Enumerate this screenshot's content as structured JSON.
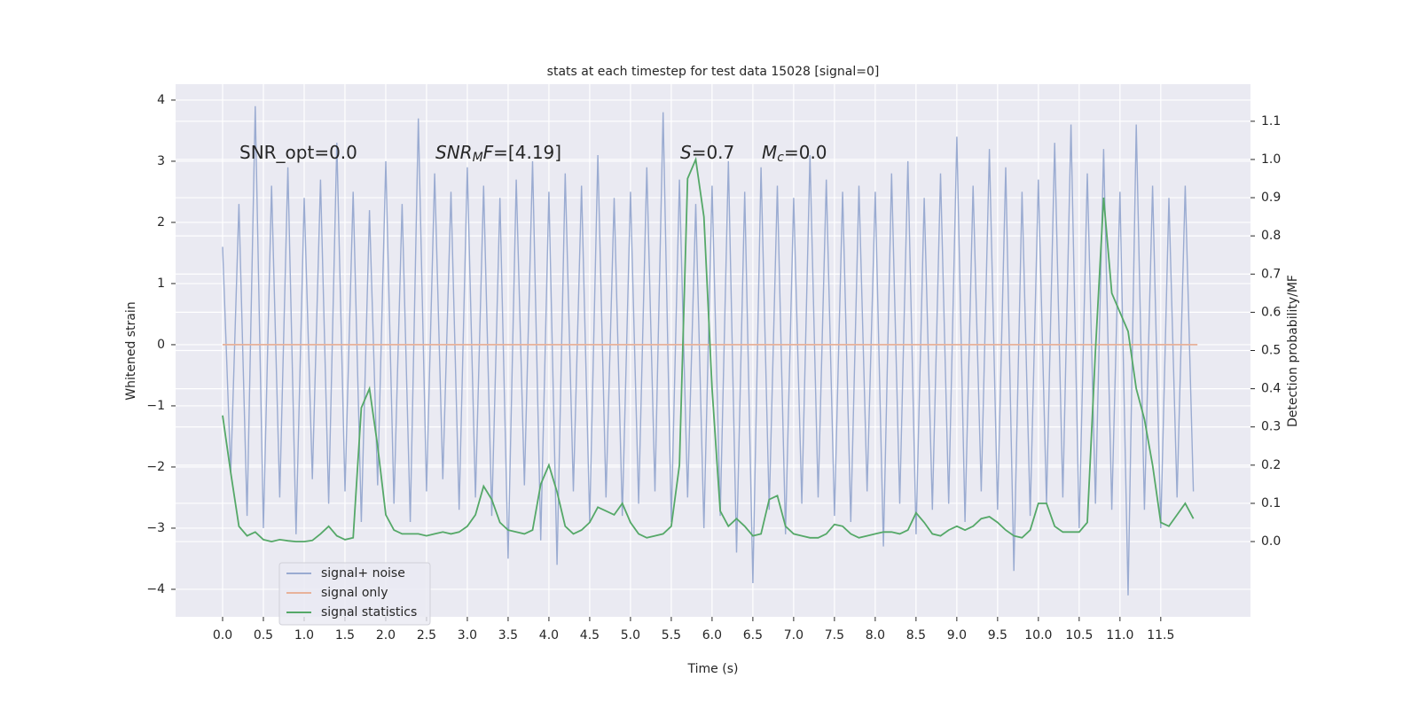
{
  "chart_data": {
    "type": "line",
    "title": "stats at each timestep for test data 15028 [signal=0]",
    "xlabel": "Time (s)",
    "ylabel": "Whitened strain",
    "y2label": "Detection probability/MF",
    "grid": true,
    "legend": "lower left",
    "annotations": [
      [
        {
          "text": "SNR_opt=0.0"
        }
      ],
      [
        {
          "text": "SNR",
          "style": "italic"
        },
        {
          "text": "M",
          "style": "sub"
        },
        {
          "text": "F",
          "style": "italic"
        },
        {
          "text": "=[4.19]"
        }
      ],
      [
        {
          "text": "S",
          "style": "italic"
        },
        {
          "text": "=0.7"
        }
      ],
      [
        {
          "text": "M",
          "style": "italic"
        },
        {
          "text": "c",
          "style": "sub"
        },
        {
          "text": "=0.0"
        }
      ]
    ],
    "xlim": [
      -0.576,
      12.6
    ],
    "ylim": [
      -4.45,
      4.26
    ],
    "y2lim": [
      -0.197,
      1.197
    ],
    "xticks": [
      {
        "value": 0,
        "label": "0.0"
      },
      0.5,
      {
        "value": 1,
        "label": "1.0"
      },
      1.5,
      {
        "value": 2,
        "label": "2.0"
      },
      2.5,
      {
        "value": 3,
        "label": "3.0"
      },
      3.5,
      {
        "value": 4,
        "label": "4.0"
      },
      4.5,
      {
        "value": 5,
        "label": "5.0"
      },
      5.5,
      {
        "value": 6,
        "label": "6.0"
      },
      6.5,
      {
        "value": 7,
        "label": "7.0"
      },
      7.5,
      {
        "value": 8,
        "label": "8.0"
      },
      8.5,
      {
        "value": 9,
        "label": "9.0"
      },
      9.5,
      {
        "value": 10,
        "label": "10.0"
      },
      10.5,
      {
        "value": 11,
        "label": "11.0"
      },
      11.5
    ],
    "yticks": [
      {
        "value": -4,
        "label": "−4"
      },
      {
        "value": -3,
        "label": "−3"
      },
      {
        "value": -2,
        "label": "−2"
      },
      {
        "value": -1,
        "label": "−1"
      },
      0,
      1,
      2,
      3,
      4
    ],
    "y2ticks": [
      {
        "value": 0,
        "label": "0.0"
      },
      0.1,
      0.2,
      0.3,
      0.4,
      0.5,
      0.6,
      0.7,
      0.8,
      0.9,
      {
        "value": 1,
        "label": "1.0"
      },
      1.1
    ],
    "x": [
      0.0,
      0.1,
      0.2,
      0.3,
      0.4,
      0.5,
      0.6,
      0.7,
      0.8,
      0.9,
      1.0,
      1.1,
      1.2,
      1.3,
      1.4,
      1.5,
      1.6,
      1.7,
      1.8,
      1.9,
      2.0,
      2.1,
      2.2,
      2.3,
      2.4,
      2.5,
      2.6,
      2.7,
      2.8,
      2.9,
      3.0,
      3.1,
      3.2,
      3.3,
      3.4,
      3.5,
      3.6,
      3.7,
      3.8,
      3.9,
      4.0,
      4.1,
      4.2,
      4.3,
      4.4,
      4.5,
      4.6,
      4.7,
      4.8,
      4.9,
      5.0,
      5.1,
      5.2,
      5.3,
      5.4,
      5.5,
      5.6,
      5.7,
      5.8,
      5.9,
      6.0,
      6.1,
      6.2,
      6.3,
      6.4,
      6.5,
      6.6,
      6.7,
      6.8,
      6.9,
      7.0,
      7.1,
      7.2,
      7.3,
      7.4,
      7.5,
      7.6,
      7.7,
      7.8,
      7.9,
      8.0,
      8.1,
      8.2,
      8.3,
      8.4,
      8.5,
      8.6,
      8.7,
      8.8,
      8.9,
      9.0,
      9.1,
      9.2,
      9.3,
      9.4,
      9.5,
      9.6,
      9.7,
      9.8,
      9.9,
      10.0,
      10.1,
      10.2,
      10.3,
      10.4,
      10.5,
      10.6,
      10.7,
      10.8,
      10.9,
      11.0,
      11.1,
      11.2,
      11.3,
      11.4,
      11.5,
      11.6,
      11.7,
      11.8,
      11.9
    ],
    "series": [
      {
        "name": "signal+ noise",
        "color": "#9aabd1",
        "values": [
          1.6,
          -2.1,
          2.3,
          -2.8,
          3.9,
          -3.0,
          2.6,
          -2.5,
          2.9,
          -3.1,
          2.4,
          -2.2,
          2.7,
          -2.6,
          3.3,
          -2.4,
          2.5,
          -2.9,
          2.2,
          -2.3,
          3.0,
          -2.6,
          2.3,
          -2.9,
          3.7,
          -2.4,
          2.8,
          -2.2,
          2.5,
          -2.7,
          2.9,
          -2.5,
          2.6,
          -2.8,
          2.4,
          -3.5,
          2.7,
          -2.3,
          3.0,
          -3.2,
          2.5,
          -3.6,
          2.8,
          -2.4,
          2.6,
          -2.9,
          3.1,
          -2.5,
          2.4,
          -2.8,
          2.5,
          -2.6,
          2.9,
          -2.4,
          3.8,
          -2.9,
          2.7,
          -2.5,
          2.3,
          -3.0,
          2.6,
          -2.8,
          3.0,
          -3.4,
          2.5,
          -3.9,
          2.9,
          -2.7,
          2.6,
          -3.1,
          2.4,
          -2.6,
          3.1,
          -2.5,
          2.7,
          -2.8,
          2.5,
          -2.9,
          2.6,
          -2.4,
          2.5,
          -3.3,
          2.8,
          -2.6,
          3.0,
          -3.1,
          2.4,
          -2.7,
          2.8,
          -2.6,
          3.4,
          -2.9,
          2.6,
          -2.4,
          3.2,
          -2.7,
          2.9,
          -3.7,
          2.5,
          -2.8,
          2.7,
          -2.6,
          3.3,
          -2.5,
          3.6,
          -3.0,
          2.8,
          -2.6,
          3.2,
          -2.7,
          2.5,
          -4.1,
          3.6,
          -2.7,
          2.6,
          -3.0,
          2.4,
          -2.5,
          2.6,
          -2.4
        ]
      },
      {
        "name": "signal only",
        "color": "#e8b29a",
        "x": [
          0,
          11.95
        ],
        "values": [
          0,
          0
        ]
      },
      {
        "name": "signal statistics",
        "color": "#55a868",
        "axis": "y2",
        "values": [
          0.33,
          0.18,
          0.04,
          0.015,
          0.025,
          0.005,
          0.0,
          0.005,
          0.002,
          0.0,
          0.0,
          0.003,
          0.02,
          0.04,
          0.015,
          0.005,
          0.01,
          0.35,
          0.4,
          0.25,
          0.07,
          0.03,
          0.02,
          0.02,
          0.02,
          0.015,
          0.02,
          0.025,
          0.02,
          0.025,
          0.04,
          0.07,
          0.145,
          0.11,
          0.05,
          0.03,
          0.025,
          0.02,
          0.03,
          0.15,
          0.2,
          0.13,
          0.04,
          0.02,
          0.03,
          0.05,
          0.09,
          0.08,
          0.07,
          0.1,
          0.05,
          0.02,
          0.01,
          0.015,
          0.02,
          0.04,
          0.2,
          0.95,
          1.0,
          0.85,
          0.4,
          0.08,
          0.04,
          0.06,
          0.04,
          0.015,
          0.02,
          0.11,
          0.12,
          0.04,
          0.02,
          0.015,
          0.01,
          0.01,
          0.02,
          0.045,
          0.04,
          0.02,
          0.01,
          0.015,
          0.02,
          0.025,
          0.025,
          0.02,
          0.03,
          0.075,
          0.05,
          0.02,
          0.015,
          0.03,
          0.04,
          0.03,
          0.04,
          0.06,
          0.065,
          0.05,
          0.03,
          0.015,
          0.01,
          0.03,
          0.1,
          0.1,
          0.04,
          0.025,
          0.025,
          0.025,
          0.05,
          0.5,
          0.9,
          0.65,
          0.6,
          0.55,
          0.4,
          0.32,
          0.2,
          0.05,
          0.04,
          0.07,
          0.1,
          0.06
        ]
      }
    ]
  }
}
